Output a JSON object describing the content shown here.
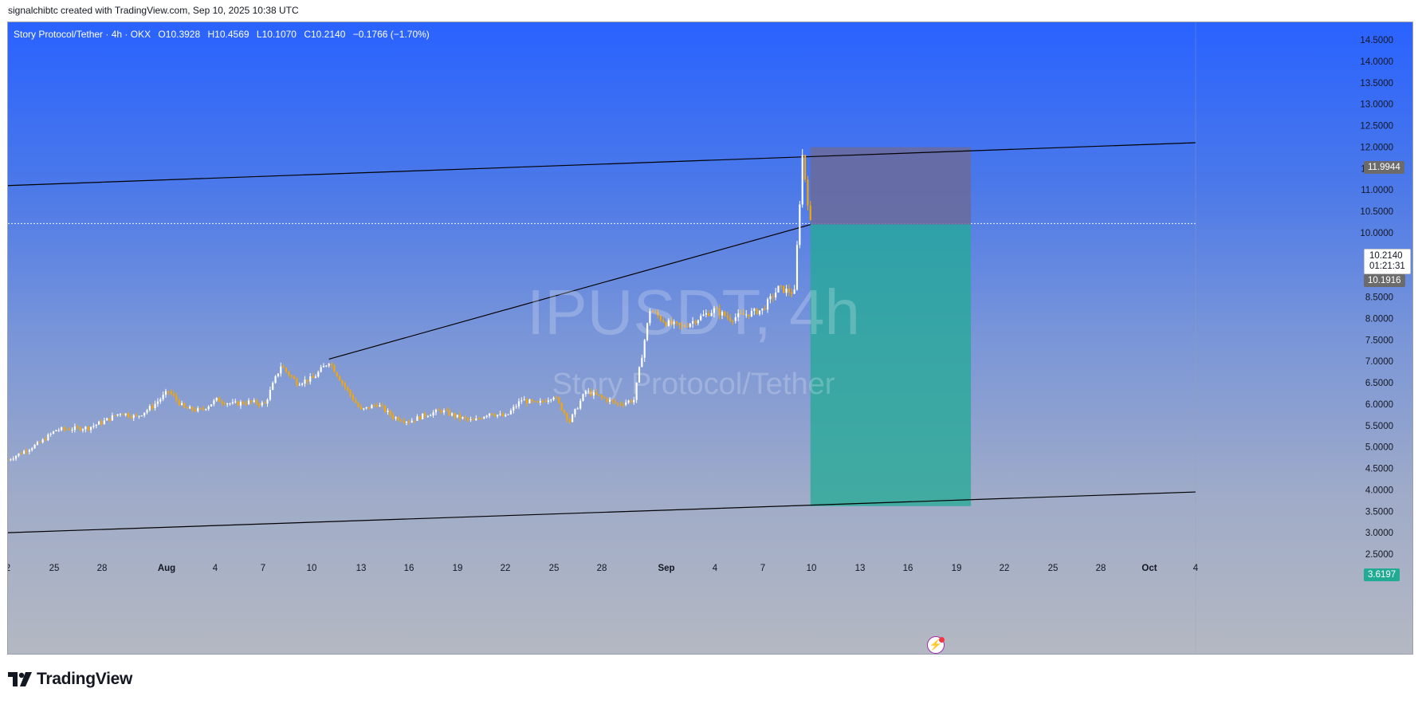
{
  "header": {
    "attribution": "signalchibtc created with TradingView.com, Sep 10, 2025 10:38 UTC"
  },
  "symbol_bar": {
    "name": "Story Protocol/Tether · 4h · OKX",
    "open_key": "O",
    "open": "10.3928",
    "high_key": "H",
    "high": "10.4569",
    "low_key": "L",
    "low": "10.1070",
    "close_key": "C",
    "close": "10.2140",
    "change": "−0.1766 (−1.70%)"
  },
  "watermark": {
    "ticker": "IPUSDT, 4h",
    "name": "Story Protocol/Tether"
  },
  "price_tags": {
    "upper_line": "11.9944",
    "current_price": "10.2140",
    "countdown": "01:21:31",
    "entry": "10.1916",
    "target": "3.6197"
  },
  "footer": {
    "brand": "TradingView"
  },
  "colors": {
    "candle_up": "#ffffff",
    "candle_down": "#f7a600",
    "trendline": "#000000",
    "stop_zone": "#6b6b9a",
    "target_zone": "#22ab94",
    "current_price_line": "#ffffff"
  },
  "chart_data": {
    "type": "candlestick",
    "title": "IPUSDT, 4h",
    "x_ticks": [
      "2",
      "25",
      "28",
      "Aug",
      "4",
      "7",
      "10",
      "13",
      "16",
      "19",
      "22",
      "25",
      "28",
      "Sep",
      "4",
      "7",
      "10",
      "13",
      "16",
      "19",
      "22",
      "25",
      "28",
      "Oct",
      "4"
    ],
    "y_ticks": [
      "14.5000",
      "14.0000",
      "13.5000",
      "13.0000",
      "12.5000",
      "12.0000",
      "11.5000",
      "11.0000",
      "10.5000",
      "10.0000",
      "9.5000",
      "9.0000",
      "8.5000",
      "8.0000",
      "7.5000",
      "7.0000",
      "6.5000",
      "6.0000",
      "5.5000",
      "5.0000",
      "4.5000",
      "4.0000",
      "3.5000",
      "3.0000",
      "2.5000"
    ],
    "ylim": [
      2.3,
      14.9
    ],
    "x_range": [
      "2025-07-22",
      "2025-10-04"
    ],
    "price_path": [
      [
        "2025-07-22",
        4.7
      ],
      [
        "2025-07-24",
        5.1
      ],
      [
        "2025-07-25",
        5.4
      ],
      [
        "2025-07-27",
        5.45
      ],
      [
        "2025-07-28",
        5.6
      ],
      [
        "2025-07-29",
        5.8
      ],
      [
        "2025-07-30",
        5.7
      ],
      [
        "2025-07-31",
        5.95
      ],
      [
        "2025-08-01",
        6.3
      ],
      [
        "2025-08-02",
        5.9
      ],
      [
        "2025-08-03",
        5.85
      ],
      [
        "2025-08-04",
        6.1
      ],
      [
        "2025-08-05",
        6.0
      ],
      [
        "2025-08-06",
        6.05
      ],
      [
        "2025-08-07",
        6.0
      ],
      [
        "2025-08-08",
        6.9
      ],
      [
        "2025-08-09",
        6.5
      ],
      [
        "2025-08-10",
        6.6
      ],
      [
        "2025-08-11",
        7.0
      ],
      [
        "2025-08-12",
        6.4
      ],
      [
        "2025-08-13",
        5.85
      ],
      [
        "2025-08-14",
        6.0
      ],
      [
        "2025-08-15",
        5.7
      ],
      [
        "2025-08-16",
        5.6
      ],
      [
        "2025-08-17",
        5.75
      ],
      [
        "2025-08-18",
        5.85
      ],
      [
        "2025-08-19",
        5.7
      ],
      [
        "2025-08-20",
        5.6
      ],
      [
        "2025-08-21",
        5.8
      ],
      [
        "2025-08-22",
        5.7
      ],
      [
        "2025-08-23",
        6.1
      ],
      [
        "2025-08-24",
        6.0
      ],
      [
        "2025-08-25",
        6.2
      ],
      [
        "2025-08-26",
        5.6
      ],
      [
        "2025-08-27",
        6.3
      ],
      [
        "2025-08-28",
        6.15
      ],
      [
        "2025-08-29",
        6.0
      ],
      [
        "2025-08-30",
        6.1
      ],
      [
        "2025-08-31",
        8.2
      ],
      [
        "2025-09-01",
        7.9
      ],
      [
        "2025-09-02",
        7.8
      ],
      [
        "2025-09-03",
        8.0
      ],
      [
        "2025-09-04",
        8.2
      ],
      [
        "2025-09-05",
        8.0
      ],
      [
        "2025-09-06",
        8.1
      ],
      [
        "2025-09-07",
        8.2
      ],
      [
        "2025-09-08",
        8.7
      ],
      [
        "2025-09-09",
        8.6
      ],
      [
        "2025-09-09T12",
        11.8
      ],
      [
        "2025-09-10",
        10.21
      ]
    ],
    "trendlines": [
      {
        "name": "upper",
        "from": [
          "2025-07-22",
          11.1
        ],
        "to": [
          "2025-10-04",
          12.1
        ]
      },
      {
        "name": "lower",
        "from": [
          "2025-07-22",
          3.0
        ],
        "to": [
          "2025-10-04",
          3.95
        ]
      },
      {
        "name": "inner",
        "from": [
          "2025-08-11",
          7.05
        ],
        "to": [
          "2025-09-10",
          10.19
        ]
      }
    ],
    "short_position": {
      "start": "2025-09-10",
      "end": "2025-09-20",
      "stop": 11.9944,
      "entry": 10.1916,
      "target": 3.6197
    },
    "current_price": 10.214
  }
}
